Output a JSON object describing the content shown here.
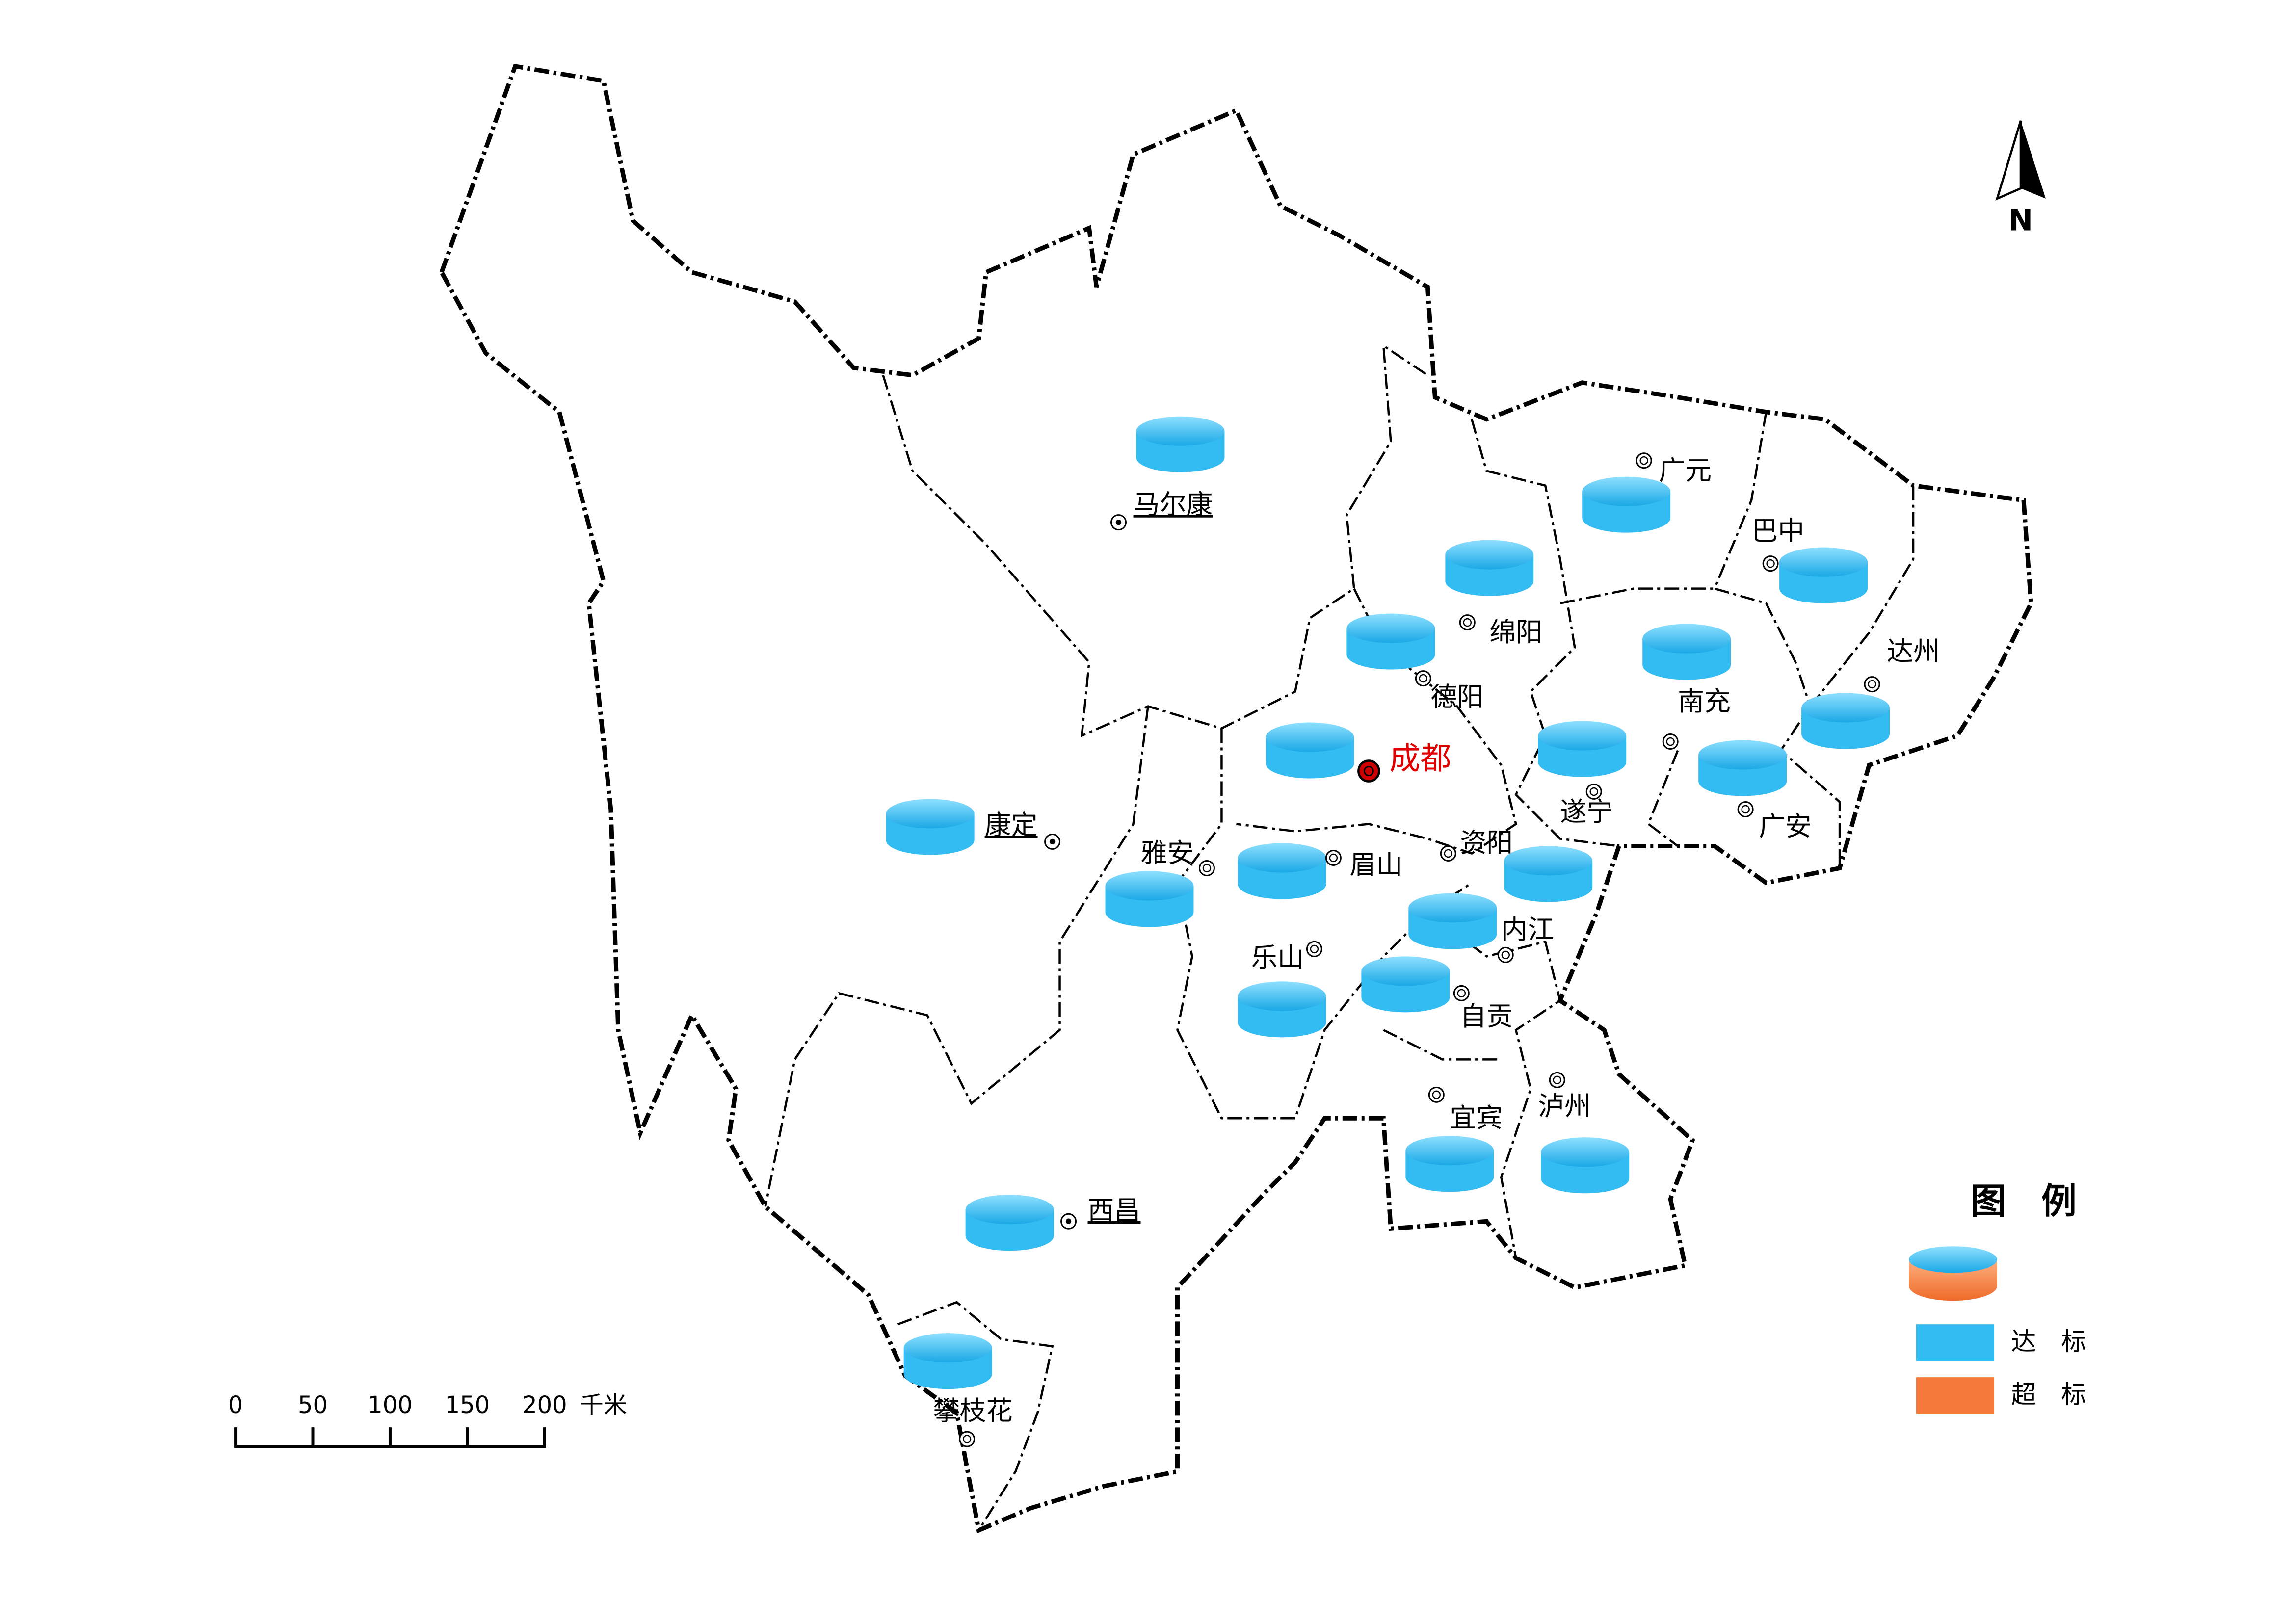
{
  "north": "N",
  "cities": [
    {
      "name": "马尔康"
    },
    {
      "name": "康定"
    },
    {
      "name": "西昌"
    },
    {
      "name": "攀枝花"
    },
    {
      "name": "广元"
    },
    {
      "name": "巴中"
    },
    {
      "name": "达州"
    },
    {
      "name": "绵阳"
    },
    {
      "name": "德阳"
    },
    {
      "name": "南充"
    },
    {
      "name": "成都"
    },
    {
      "name": "遂宁"
    },
    {
      "name": "广安"
    },
    {
      "name": "资阳"
    },
    {
      "name": "眉山"
    },
    {
      "name": "雅安"
    },
    {
      "name": "乐山"
    },
    {
      "name": "内江"
    },
    {
      "name": "自贡"
    },
    {
      "name": "宜宾"
    },
    {
      "name": "泸州"
    }
  ],
  "legend": {
    "title": "图　例",
    "items": [
      {
        "label": "达　标",
        "color": "#33bcf2"
      },
      {
        "label": "超　标",
        "color": "#f57a3c"
      }
    ]
  },
  "scale_bar": {
    "ticks": [
      0,
      50,
      100,
      150,
      200
    ],
    "unit": "千米"
  }
}
